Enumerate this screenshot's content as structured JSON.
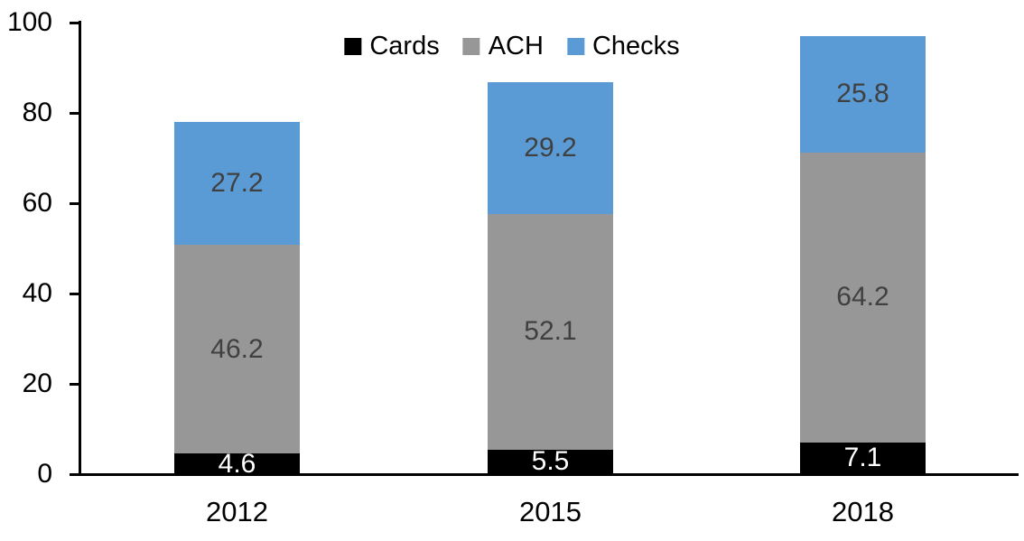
{
  "chart_data": {
    "type": "bar",
    "stacked": true,
    "categories": [
      "2012",
      "2015",
      "2018"
    ],
    "series": [
      {
        "name": "Cards",
        "color": "#000000",
        "label_color": "#ffffff",
        "values": [
          4.6,
          5.5,
          7.1
        ]
      },
      {
        "name": "ACH",
        "color": "#979797",
        "label_color": "#404040",
        "values": [
          46.2,
          52.1,
          64.2
        ]
      },
      {
        "name": "Checks",
        "color": "#5B9BD5",
        "label_color": "#404040",
        "values": [
          27.2,
          29.2,
          25.8
        ]
      }
    ],
    "totals": [
      78.0,
      86.8,
      97.1
    ],
    "xlabel": "",
    "ylabel": "",
    "ylim": [
      0,
      100
    ],
    "yticks": [
      0,
      20,
      40,
      60,
      80,
      100
    ],
    "grid": false,
    "data_labels": true,
    "legend_position": "top-center",
    "axis_color": "#000000",
    "background_color": "#ffffff"
  }
}
